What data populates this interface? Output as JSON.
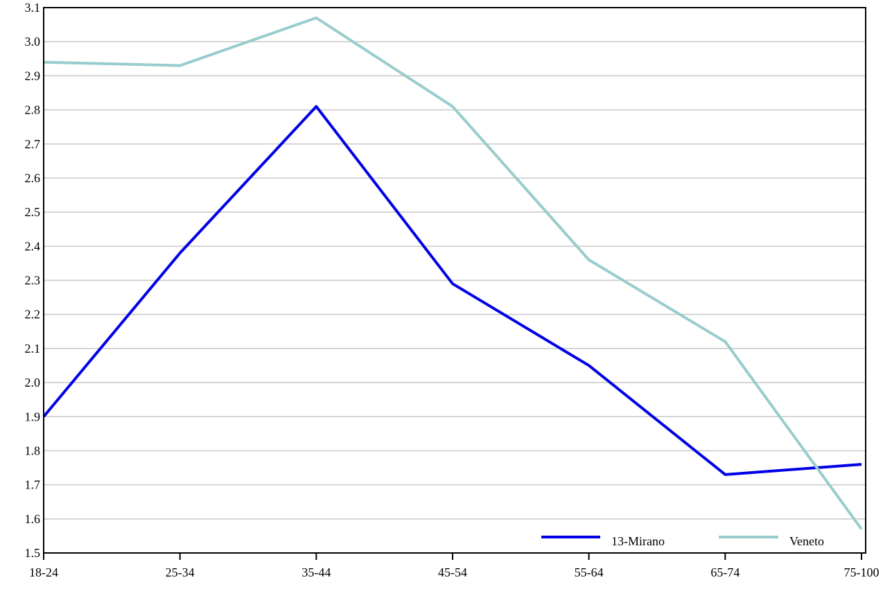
{
  "chart_data": {
    "type": "line",
    "title": "",
    "xlabel": "",
    "ylabel": "",
    "categories": [
      "18-24",
      "25-34",
      "35-44",
      "45-54",
      "55-64",
      "65-74",
      "75-100"
    ],
    "ylim": [
      1.5,
      3.1
    ],
    "yticks": [
      "1.5",
      "1.6",
      "1.7",
      "1.8",
      "1.9",
      "2.0",
      "2.1",
      "2.2",
      "2.3",
      "2.4",
      "2.5",
      "2.6",
      "2.7",
      "2.8",
      "2.9",
      "3.0",
      "3.1"
    ],
    "grid": true,
    "legend_position": "bottom-right",
    "series": [
      {
        "name": "13-Mirano",
        "color": "#0000e6",
        "values": [
          1.9,
          2.38,
          2.81,
          2.29,
          2.05,
          1.73,
          1.76
        ]
      },
      {
        "name": "Veneto",
        "color": "#99cccc",
        "values": [
          2.94,
          2.93,
          3.07,
          2.81,
          2.36,
          2.12,
          1.57
        ]
      }
    ]
  }
}
